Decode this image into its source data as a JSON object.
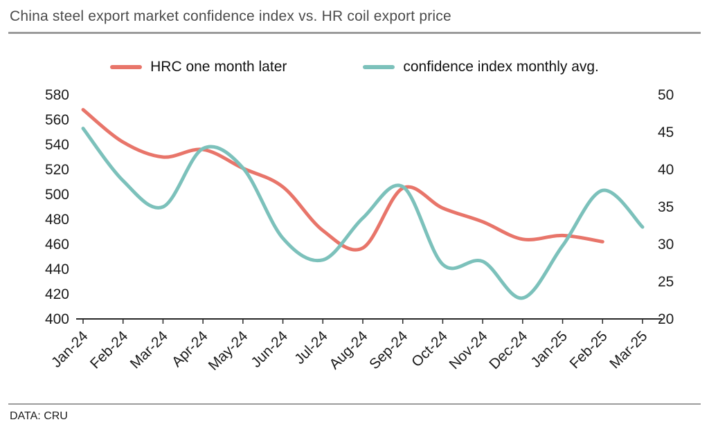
{
  "header": {
    "title": "China steel export market confidence index vs. HR coil export price"
  },
  "footer": {
    "source": "DATA: CRU"
  },
  "chart_data": {
    "type": "line",
    "title": "China steel export market confidence index vs. HR coil export price",
    "legend_position": "top",
    "grid": false,
    "categories": [
      "Jan-24",
      "Feb-24",
      "Mar-24",
      "Apr-24",
      "May-24",
      "Jun-24",
      "Jul-24",
      "Aug-24",
      "Sep-24",
      "Oct-24",
      "Nov-24",
      "Dec-24",
      "Jan-25",
      "Feb-25",
      "Mar-25"
    ],
    "left_axis": {
      "min": 400,
      "max": 580,
      "step": 20
    },
    "right_axis": {
      "min": 20,
      "max": 50,
      "step": 5
    },
    "series": [
      {
        "name": "HRC one month later",
        "axis": "left",
        "color": "#e8756a",
        "values": [
          568,
          542,
          530,
          536,
          521,
          506,
          471,
          457,
          505,
          489,
          478,
          464,
          467,
          462,
          null
        ]
      },
      {
        "name": "confidence index monthly avg.",
        "axis": "right",
        "color": "#7cc1bb",
        "values": [
          45.5,
          38.5,
          35.0,
          42.8,
          40.2,
          30.8,
          27.9,
          33.5,
          37.7,
          27.3,
          27.7,
          22.8,
          29.8,
          37.2,
          32.3
        ]
      }
    ]
  }
}
